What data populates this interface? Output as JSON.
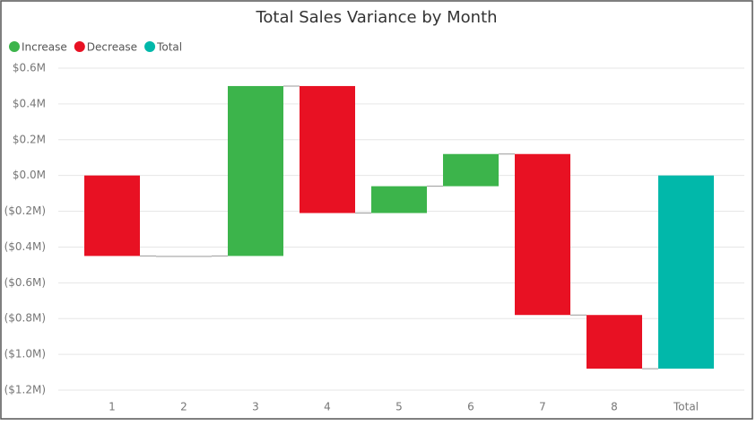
{
  "chart_data": {
    "type": "waterfall",
    "title": "Total Sales Variance by Month",
    "legend": [
      {
        "name": "Increase",
        "color": "#3cb44b"
      },
      {
        "name": "Decrease",
        "color": "#e81123"
      },
      {
        "name": "Total",
        "color": "#01b8aa"
      }
    ],
    "categories": [
      "1",
      "2",
      "3",
      "4",
      "5",
      "6",
      "7",
      "8",
      "Total"
    ],
    "values": [
      -450000,
      0,
      950000,
      -710000,
      150000,
      180000,
      -900000,
      -300000,
      -1080000
    ],
    "ylim": [
      -1200000,
      600000
    ],
    "yticks": [
      {
        "value": 600000,
        "label": "$0.6M"
      },
      {
        "value": 400000,
        "label": "$0.4M"
      },
      {
        "value": 200000,
        "label": "$0.2M"
      },
      {
        "value": 0,
        "label": "$0.0M"
      },
      {
        "value": -200000,
        "label": "($0.2M)"
      },
      {
        "value": -400000,
        "label": "($0.4M)"
      },
      {
        "value": -600000,
        "label": "($0.6M)"
      },
      {
        "value": -800000,
        "label": "($0.8M)"
      },
      {
        "value": -1000000,
        "label": "($1.0M)"
      },
      {
        "value": -1200000,
        "label": "($1.2M)"
      }
    ],
    "grid": true
  }
}
